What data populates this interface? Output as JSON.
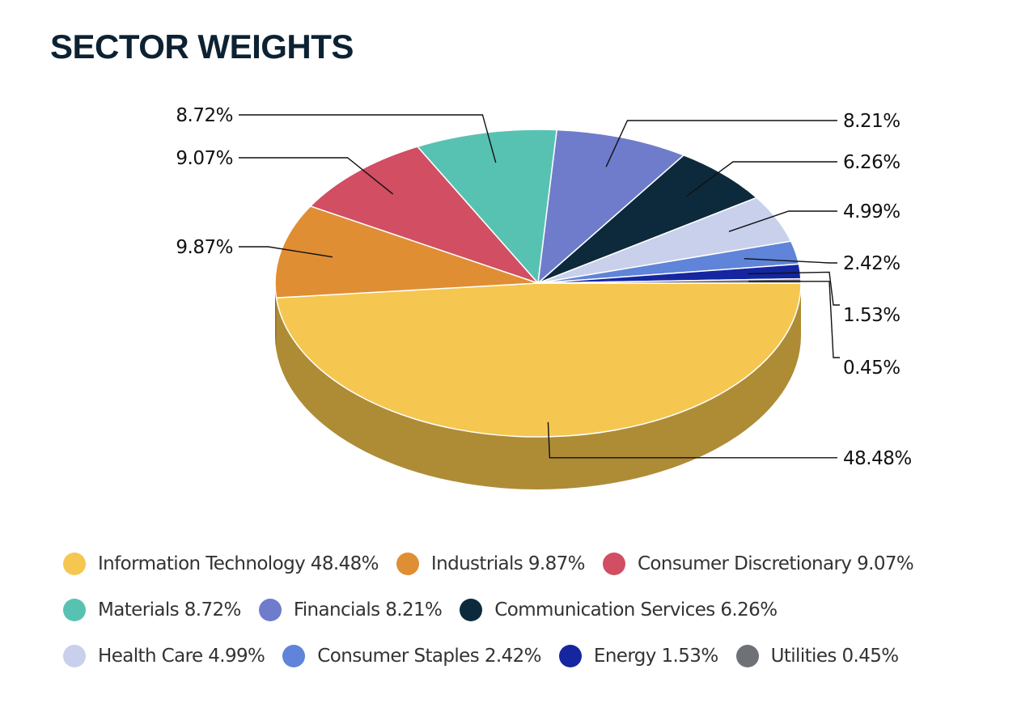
{
  "title": "SECTOR WEIGHTS",
  "chart_data": {
    "type": "pie",
    "three_d": true,
    "legend_position": "bottom",
    "categories": [
      "Information Technology",
      "Industrials",
      "Consumer Discretionary",
      "Materials",
      "Financials",
      "Communication Services",
      "Health Care",
      "Consumer Staples",
      "Energy",
      "Utilities"
    ],
    "values": [
      48.48,
      9.87,
      9.07,
      8.72,
      8.21,
      6.26,
      4.99,
      2.42,
      1.53,
      0.45
    ],
    "data_labels": [
      "48.48%",
      "9.87%",
      "9.07%",
      "8.72%",
      "8.21%",
      "6.26%",
      "4.99%",
      "2.42%",
      "1.53%",
      "0.45%"
    ],
    "colors": [
      "#f5c751",
      "#e08e33",
      "#d14e63",
      "#58c2b2",
      "#6f7ccc",
      "#0c2a3b",
      "#c8d0eb",
      "#5f84d9",
      "#1526a0",
      "#6e7175"
    ],
    "legend_labels": [
      "Information Technology 48.48%",
      "Industrials 9.87%",
      "Consumer Discretionary 9.07%",
      "Materials 8.72%",
      "Financials 8.21%",
      "Communication Services 6.26%",
      "Health Care 4.99%",
      "Consumer Staples 2.42%",
      "Energy 1.53%",
      "Utilities 0.45%"
    ],
    "side_colors": [
      "#ae8c36",
      "#9c6424",
      "#923746",
      "#3e887d",
      "#4e578f",
      "#081d2a",
      "#8c92a5",
      "#435d98",
      "#0e1b70",
      "#4d4f52"
    ]
  }
}
